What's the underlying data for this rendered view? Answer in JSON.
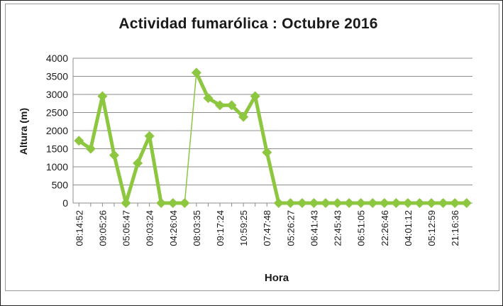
{
  "chart_data": {
    "type": "line",
    "title": "Actividad fumarólica : Octubre 2016",
    "xlabel": "Hora",
    "ylabel": "Altura (m)",
    "ylim": [
      0,
      4000
    ],
    "yticks": [
      0,
      500,
      1000,
      1500,
      2000,
      2500,
      3000,
      3500,
      4000
    ],
    "grid": "horizontal",
    "color": "#8dc63f",
    "categories": [
      "08:14:52",
      "",
      "09:05:26",
      "",
      "05:05:47",
      "",
      "09:03:24",
      "",
      "04:26:04",
      "",
      "08:03:35",
      "",
      "09:17:24",
      "",
      "10:59:25",
      "",
      "07:47:48",
      "",
      "05:26:27",
      "",
      "06:41:43",
      "",
      "22:45:43",
      "",
      "06:51:05",
      "",
      "22:26:46",
      "",
      "04:01:12",
      "",
      "05:12:59",
      "",
      "21:16:36",
      ""
    ],
    "series": [
      {
        "values": [
          1720,
          1500,
          2950,
          1320,
          0,
          1100,
          1850,
          0,
          0,
          0,
          3600,
          2900,
          2700,
          2700,
          2380,
          2950,
          1400,
          0,
          0,
          0,
          0,
          0,
          0,
          0,
          0,
          0,
          0,
          0,
          0,
          0,
          0,
          0,
          0,
          0
        ]
      }
    ]
  }
}
